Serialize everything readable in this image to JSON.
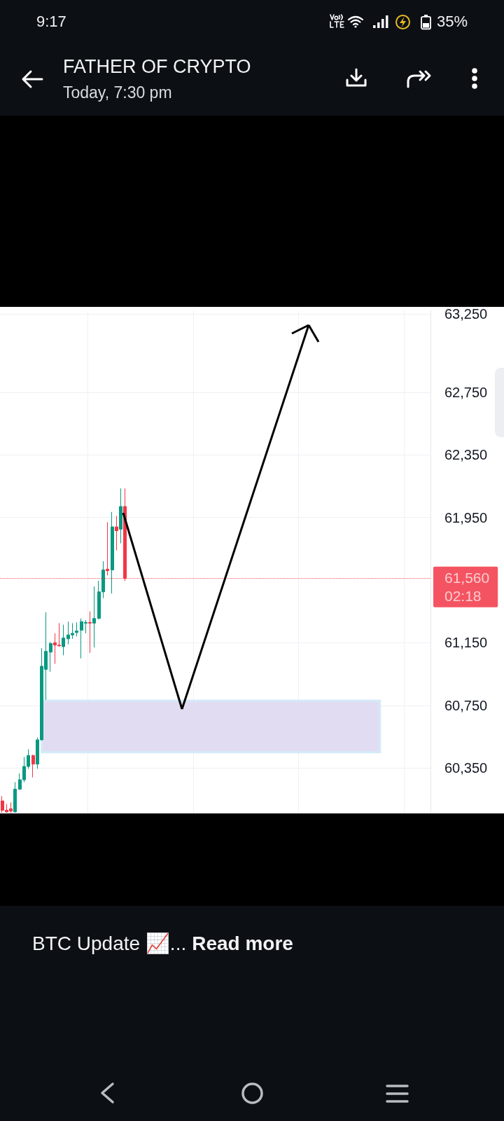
{
  "chart_data": {
    "type": "candlestick",
    "title": "FATHER OF CRYPTO",
    "subtitle": "Today, 7:30 pm",
    "annotations": [
      "9:17",
      "35%",
      "BTC Update 📈...",
      "Read more"
    ],
    "categories": [
      null,
      null,
      null,
      null,
      null,
      null,
      null,
      null,
      null,
      null,
      null,
      null,
      null,
      null,
      null,
      null,
      null,
      null,
      null,
      null,
      null,
      null,
      null,
      null,
      null,
      null,
      null,
      null,
      null,
      null,
      null,
      null,
      null,
      null,
      null,
      null,
      null,
      null,
      null,
      null,
      null,
      null,
      null,
      null,
      null,
      null,
      null,
      null,
      null,
      null,
      null,
      null,
      null,
      null,
      null,
      null,
      null,
      null,
      null,
      null,
      null,
      null,
      null,
      null,
      null,
      null,
      null,
      null,
      null,
      null,
      null,
      null,
      null,
      null,
      null,
      null,
      null,
      null,
      null,
      null,
      null,
      null,
      null,
      null,
      null,
      null,
      null,
      null,
      null,
      null,
      null,
      null,
      null,
      null,
      null,
      null,
      null,
      null
    ],
    "ohlc": [
      [
        60140,
        60170,
        60065,
        60080
      ],
      [
        60080,
        60120,
        60065,
        60070
      ],
      [
        60090,
        60130,
        60065,
        60075
      ],
      [
        60070,
        60260,
        60065,
        60215
      ],
      [
        60215,
        60315,
        60210,
        60275
      ],
      [
        60275,
        60420,
        60260,
        60360
      ],
      [
        60360,
        60470,
        60345,
        60430
      ],
      [
        60430,
        60435,
        60290,
        60375
      ],
      [
        60375,
        60545,
        60345,
        60530
      ],
      [
        60530,
        61115,
        60525,
        61000
      ],
      [
        60980,
        61345,
        60785,
        61095
      ],
      [
        61090,
        61155,
        60965,
        61145
      ],
      [
        61150,
        61210,
        61015,
        61135
      ],
      [
        61135,
        61275,
        61125,
        61130
      ],
      [
        61125,
        61265,
        61070,
        61180
      ],
      [
        61175,
        61285,
        61140,
        61200
      ],
      [
        61200,
        61275,
        61175,
        61210
      ],
      [
        61215,
        61280,
        61190,
        61225
      ],
      [
        61230,
        61305,
        61050,
        61285
      ],
      [
        61275,
        61295,
        61210,
        61280
      ],
      [
        61280,
        61350,
        61085,
        61275
      ],
      [
        61275,
        61510,
        61120,
        61305
      ],
      [
        61305,
        61545,
        61300,
        61475
      ],
      [
        61475,
        61670,
        61435,
        61615
      ],
      [
        61620,
        61920,
        61580,
        61610
      ],
      [
        61615,
        61985,
        61465,
        61890
      ],
      [
        61890,
        61960,
        61740,
        61865
      ],
      [
        61875,
        62135,
        61785,
        62020
      ],
      [
        62020,
        62135,
        61545,
        61560
      ],
      null,
      null,
      null,
      null,
      null,
      null,
      null,
      null,
      null,
      null,
      null,
      null,
      null,
      null,
      null,
      null,
      null,
      null,
      null,
      null,
      null,
      null,
      null,
      null,
      null,
      null,
      null,
      null,
      null,
      null,
      null,
      null,
      null,
      null,
      null,
      null,
      null,
      null,
      null,
      null,
      null,
      null,
      null,
      null,
      null,
      null,
      null,
      null,
      null,
      null,
      null,
      null,
      null,
      null,
      null,
      null,
      null,
      null,
      null,
      null,
      null,
      null,
      null,
      null,
      null,
      null,
      null,
      null,
      null
    ],
    "colors": [
      "#f23645",
      "#f23645",
      "#f23645",
      "#089981",
      "#089981",
      "#089981",
      "#089981",
      "#f23645",
      "#089981",
      "#089981",
      "#089981",
      "#089981",
      "#f23645",
      "#f23645",
      "#089981",
      "#089981",
      "#089981",
      "#089981",
      "#089981",
      "#089981",
      "#f23645",
      "#089981",
      "#089981",
      "#089981",
      "#f23645",
      "#089981",
      "#f23645",
      "#089981",
      "#f23645",
      null,
      null,
      null,
      null,
      null,
      null,
      null,
      null,
      null,
      null,
      null,
      null,
      null,
      null,
      null,
      null,
      null,
      null,
      null,
      null,
      null,
      null,
      null,
      null,
      null,
      null,
      null,
      null,
      null,
      null,
      null,
      null,
      null,
      null,
      null,
      null,
      null,
      null,
      null,
      null,
      null,
      null,
      null,
      null,
      null,
      null,
      null,
      null,
      null,
      null,
      null,
      null,
      null,
      null,
      null,
      null,
      null,
      null,
      null,
      null,
      null,
      null,
      null,
      null,
      null,
      null,
      null,
      null,
      null
    ],
    "ylim": [
      60060,
      63270
    ],
    "yticks": [
      {
        "value": 63250,
        "label": "63,250"
      },
      {
        "value": 62750,
        "label": "62,750"
      },
      {
        "value": 62350,
        "label": "62,350"
      },
      {
        "value": 61950,
        "label": "61,950"
      },
      {
        "value": 61150,
        "label": "61,150"
      },
      {
        "value": 60750,
        "label": "60,750"
      },
      {
        "value": 60350,
        "label": "60,350"
      }
    ],
    "tick_labels": "y",
    "grid": true,
    "ref_lines": [
      {
        "axis": "y",
        "value": 61560,
        "label": "61,560\n02:18",
        "color": "#f23645",
        "line_style": "dotted"
      }
    ],
    "bands": [
      {
        "axis": "y",
        "from": 60450,
        "to": 60780,
        "color": "#e2dcf3"
      }
    ]
  }
}
